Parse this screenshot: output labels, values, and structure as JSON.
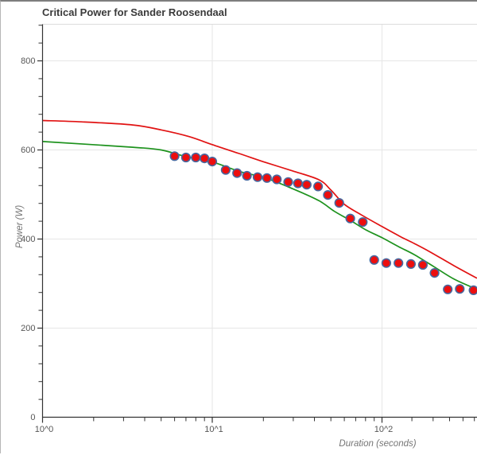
{
  "chart_data": {
    "type": "scatter",
    "title": "Critical Power for Sander Roosendaal",
    "xlabel": "Duration (seconds)",
    "ylabel": "Power (W)",
    "x_scale": "log",
    "xlim": [
      1,
      363
    ],
    "ylim": [
      0,
      882
    ],
    "grid": "on",
    "legend_position": "none",
    "x_axis": {
      "major_ticks": [
        {
          "value": 1,
          "label": "10^0"
        },
        {
          "value": 10,
          "label": "10^1"
        },
        {
          "value": 100,
          "label": "10^2"
        }
      ],
      "minor_ticks": [
        2,
        3,
        4,
        5,
        6,
        7,
        8,
        9,
        20,
        30,
        40,
        50,
        60,
        70,
        80,
        90,
        150,
        200,
        250,
        300,
        350
      ]
    },
    "y_axis": {
      "major_ticks": [
        {
          "value": 0,
          "label": "0"
        },
        {
          "value": 200,
          "label": "200"
        },
        {
          "value": 400,
          "label": "400"
        },
        {
          "value": 600,
          "label": "600"
        },
        {
          "value": 800,
          "label": "800"
        }
      ],
      "minor_tick_step": 40,
      "minor_tick_max": 880
    },
    "series": [
      {
        "name": "observed-power-points",
        "type": "scatter",
        "marker": "circle",
        "points": [
          [
            6,
            586
          ],
          [
            7,
            583
          ],
          [
            8,
            583
          ],
          [
            9,
            581
          ],
          [
            10,
            574
          ],
          [
            12,
            555
          ],
          [
            14,
            548
          ],
          [
            16,
            542
          ],
          [
            18.5,
            539
          ],
          [
            21,
            537
          ],
          [
            24,
            534
          ],
          [
            28,
            528
          ],
          [
            32,
            525
          ],
          [
            36,
            522
          ],
          [
            42,
            518
          ],
          [
            48,
            499
          ],
          [
            56,
            481
          ],
          [
            65,
            446
          ],
          [
            77,
            438
          ],
          [
            90,
            353
          ],
          [
            106,
            346
          ],
          [
            125,
            346
          ],
          [
            148,
            344
          ],
          [
            174,
            342
          ],
          [
            204,
            324
          ],
          [
            244,
            287
          ],
          [
            287,
            288
          ],
          [
            346,
            285
          ]
        ]
      },
      {
        "name": "cp-model-red",
        "type": "line",
        "points": [
          [
            1,
            666
          ],
          [
            1.7,
            663
          ],
          [
            3.4,
            656
          ],
          [
            5,
            645
          ],
          [
            7.3,
            630
          ],
          [
            10,
            612
          ],
          [
            14.4,
            592
          ],
          [
            20.6,
            572
          ],
          [
            29.7,
            553
          ],
          [
            42.5,
            533
          ],
          [
            50,
            510
          ],
          [
            60,
            478
          ],
          [
            75,
            455
          ],
          [
            100,
            428
          ],
          [
            129,
            405
          ],
          [
            155,
            390
          ],
          [
            192,
            371
          ],
          [
            266,
            340
          ],
          [
            363,
            312
          ]
        ]
      },
      {
        "name": "cp-model-green",
        "type": "line",
        "points": [
          [
            1,
            619
          ],
          [
            3.4,
            606
          ],
          [
            5,
            600
          ],
          [
            7,
            585
          ],
          [
            10,
            573
          ],
          [
            14.4,
            552
          ],
          [
            20.6,
            537
          ],
          [
            29.7,
            513
          ],
          [
            42.5,
            486
          ],
          [
            52.6,
            462
          ],
          [
            65,
            442
          ],
          [
            80,
            421
          ],
          [
            100,
            403
          ],
          [
            125,
            383
          ],
          [
            155,
            365
          ],
          [
            202,
            338
          ],
          [
            266,
            310
          ],
          [
            363,
            287
          ]
        ]
      }
    ],
    "colors": {
      "red_curve": "#e11212",
      "green_curve": "#1d921d",
      "marker_fill": "#ec0e0e",
      "marker_edge": "#47689f",
      "grid": "#e6e6e6",
      "plot_border": "#dcdcdc",
      "axis": "#333333",
      "title_text": "#3a3a3a",
      "axis_title_text": "#757575",
      "tick_label_text": "#565656"
    }
  }
}
